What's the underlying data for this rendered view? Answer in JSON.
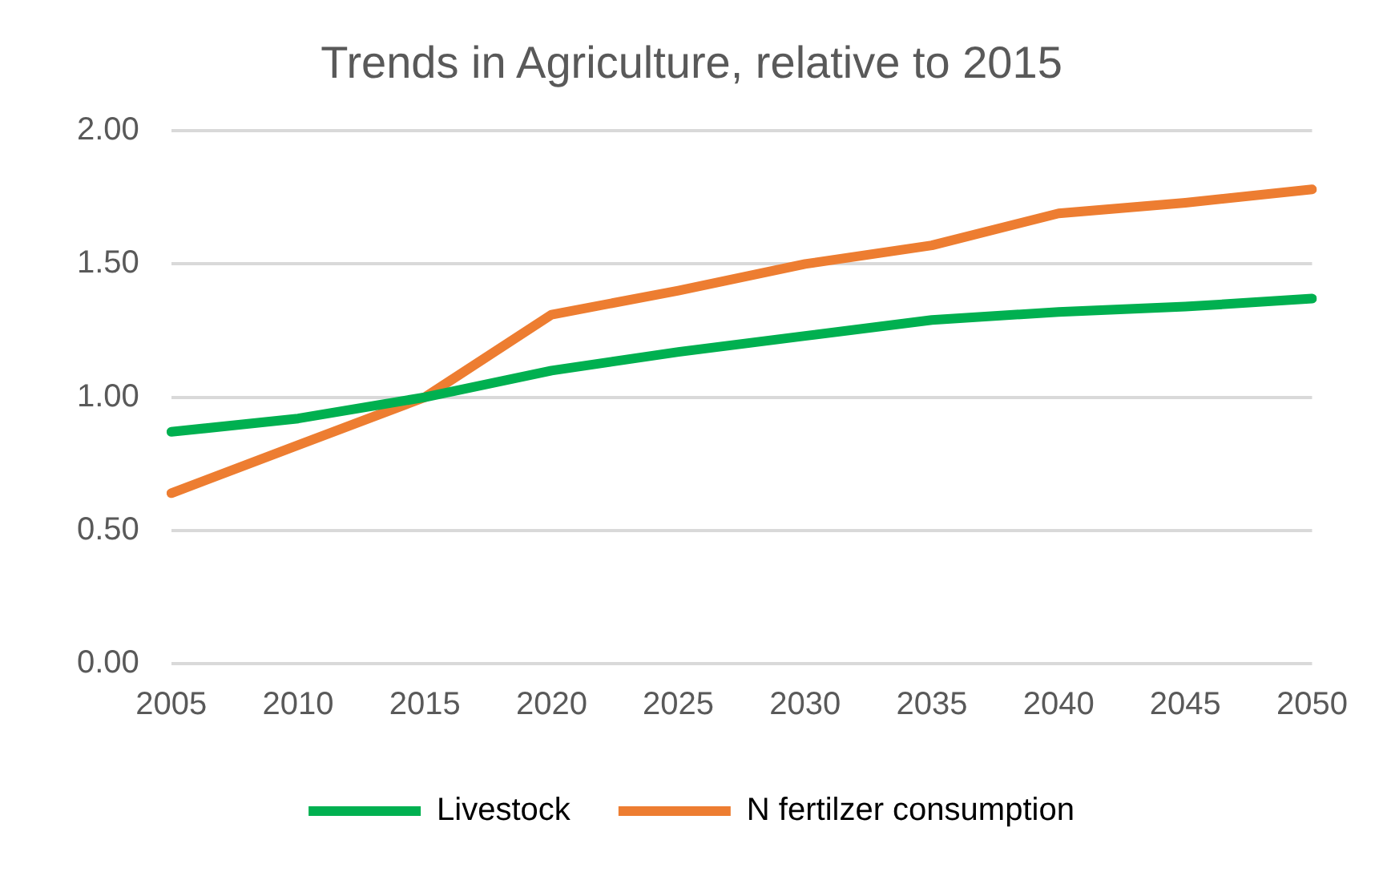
{
  "chart_data": {
    "type": "line",
    "title": "Trends in Agriculture, relative to 2015",
    "categories": [
      "2005",
      "2010",
      "2015",
      "2020",
      "2025",
      "2030",
      "2035",
      "2040",
      "2045",
      "2050"
    ],
    "series": [
      {
        "name": "Livestock",
        "color": "#00b050",
        "values": [
          0.87,
          0.92,
          1.0,
          1.1,
          1.17,
          1.23,
          1.29,
          1.32,
          1.34,
          1.37
        ]
      },
      {
        "name": "N fertilzer consumption",
        "color": "#ed7d31",
        "values": [
          0.64,
          0.82,
          1.0,
          1.31,
          1.4,
          1.5,
          1.57,
          1.69,
          1.73,
          1.78
        ]
      }
    ],
    "ylim": [
      0,
      2
    ],
    "yticks": [
      {
        "value": 0,
        "label": "0.00"
      },
      {
        "value": 0.5,
        "label": "0.50"
      },
      {
        "value": 1,
        "label": "1.00"
      },
      {
        "value": 1.5,
        "label": "1.50"
      },
      {
        "value": 2,
        "label": "2.00"
      }
    ],
    "grid": "y",
    "legend": "bottom",
    "marker": "none",
    "line_style": "solid"
  }
}
